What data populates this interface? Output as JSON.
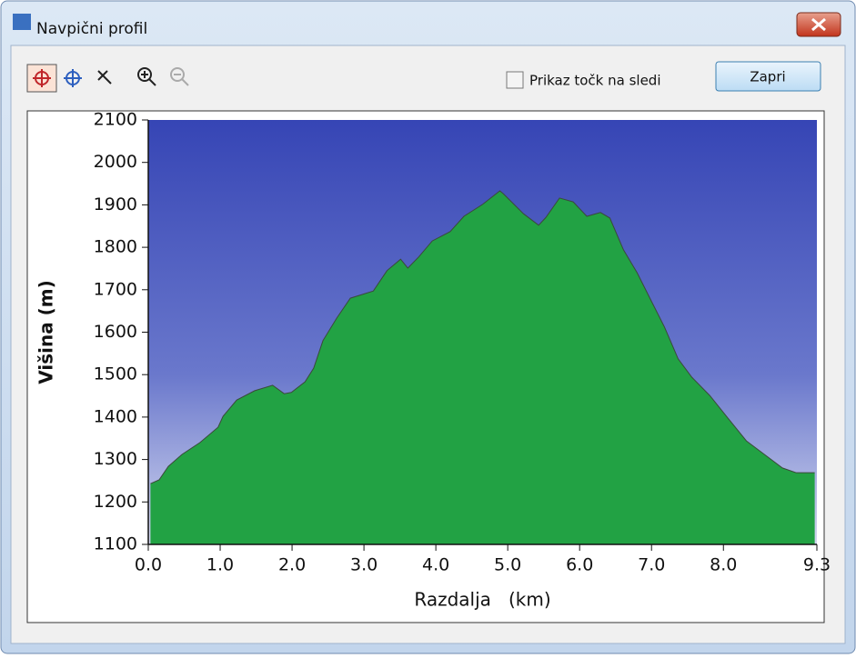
{
  "window": {
    "title": "Navpični profil",
    "checkbox_label": "Prikaz točk na sledi",
    "button_label": "Zapri"
  },
  "chart_data": {
    "type": "area",
    "xlabel": "Razdalja   (km)",
    "ylabel": "Višina (m)",
    "xlim": [
      0,
      9.3
    ],
    "ylim": [
      1100,
      2100
    ],
    "xticks": [
      {
        "value": 0,
        "label": "0.0"
      },
      {
        "value": 1,
        "label": "1.0"
      },
      {
        "value": 2,
        "label": "2.0"
      },
      {
        "value": 3,
        "label": "3.0"
      },
      {
        "value": 4,
        "label": "4.0"
      },
      {
        "value": 5,
        "label": "5.0"
      },
      {
        "value": 6,
        "label": "6.0"
      },
      {
        "value": 7,
        "label": "7.0"
      },
      {
        "value": 8,
        "label": "8.0"
      },
      9.3
    ],
    "yticks": [
      1100,
      1200,
      1300,
      1400,
      1500,
      1600,
      1700,
      1800,
      1900,
      2000,
      2100
    ],
    "color": "#22a244",
    "x": [
      0.03,
      0.15,
      0.28,
      0.47,
      0.72,
      0.97,
      1.04,
      1.23,
      1.48,
      1.73,
      1.89,
      1.99,
      2.18,
      2.3,
      2.43,
      2.62,
      2.81,
      3.13,
      3.32,
      3.51,
      3.61,
      3.76,
      3.95,
      4.2,
      4.39,
      4.65,
      4.89,
      4.94,
      5.22,
      5.43,
      5.53,
      5.72,
      5.91,
      6.1,
      6.29,
      6.42,
      6.61,
      6.8,
      6.99,
      7.18,
      7.37,
      7.56,
      7.81,
      8.06,
      8.32,
      8.57,
      8.82,
      9.01,
      9.27
    ],
    "values": [
      1243,
      1252,
      1284,
      1312,
      1340,
      1376,
      1402,
      1440,
      1462,
      1475,
      1455,
      1458,
      1483,
      1515,
      1580,
      1633,
      1680,
      1697,
      1745,
      1772,
      1751,
      1777,
      1815,
      1837,
      1873,
      1901,
      1933,
      1926,
      1879,
      1852,
      1870,
      1916,
      1907,
      1873,
      1882,
      1869,
      1794,
      1740,
      1676,
      1612,
      1537,
      1494,
      1451,
      1398,
      1344,
      1312,
      1280,
      1269,
      1269
    ]
  }
}
